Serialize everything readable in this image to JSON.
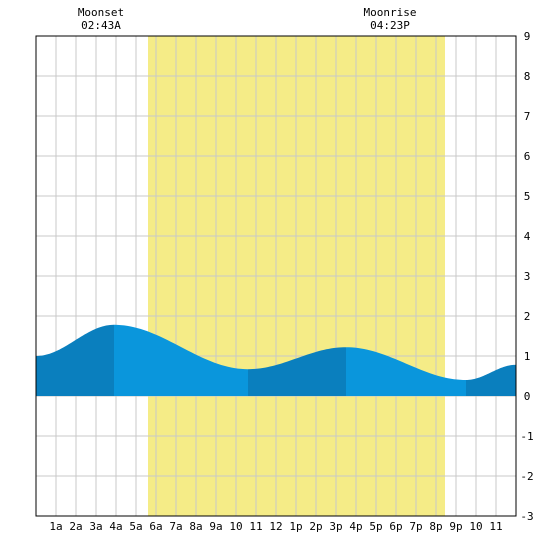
{
  "chart_data": {
    "type": "area",
    "title": "",
    "xlabel": "",
    "ylabel": "",
    "ylim": [
      -3,
      9
    ],
    "yticks": [
      "-3",
      "-2",
      "-1",
      "0",
      "1",
      "2",
      "3",
      "4",
      "5",
      "6",
      "7",
      "8",
      "9"
    ],
    "xlim": [
      0,
      24
    ],
    "xticks": [
      {
        "hour": 1,
        "label": "1a"
      },
      {
        "hour": 2,
        "label": "2a"
      },
      {
        "hour": 3,
        "label": "3a"
      },
      {
        "hour": 4,
        "label": "4a"
      },
      {
        "hour": 5,
        "label": "5a"
      },
      {
        "hour": 6,
        "label": "6a"
      },
      {
        "hour": 7,
        "label": "7a"
      },
      {
        "hour": 8,
        "label": "8a"
      },
      {
        "hour": 9,
        "label": "9a"
      },
      {
        "hour": 10,
        "label": "10"
      },
      {
        "hour": 11,
        "label": "11"
      },
      {
        "hour": 12,
        "label": "12"
      },
      {
        "hour": 13,
        "label": "1p"
      },
      {
        "hour": 14,
        "label": "2p"
      },
      {
        "hour": 15,
        "label": "3p"
      },
      {
        "hour": 16,
        "label": "4p"
      },
      {
        "hour": 17,
        "label": "5p"
      },
      {
        "hour": 18,
        "label": "6p"
      },
      {
        "hour": 19,
        "label": "7p"
      },
      {
        "hour": 20,
        "label": "8p"
      },
      {
        "hour": 21,
        "label": "9p"
      },
      {
        "hour": 22,
        "label": "10"
      },
      {
        "hour": 23,
        "label": "11"
      }
    ],
    "grid": true,
    "daylight": {
      "start_hour": 5.6,
      "end_hour": 20.45
    },
    "series": [
      {
        "x": [
          0,
          3.9,
          10.6,
          15.5,
          21.5,
          24
        ],
        "y": [
          1.0,
          1.78,
          0.67,
          1.22,
          0.4,
          0.78
        ]
      }
    ],
    "annotations": [
      {
        "hour": 3.0,
        "label": "Moonset",
        "time": "02:43A"
      },
      {
        "hour": 17.45,
        "label": "Moonrise",
        "time": "04:23P"
      }
    ],
    "colors": {
      "daylight": "#f5ec87",
      "tide_light": "#0a96dc",
      "tide_dark": "#0a7fbe",
      "grid": "#c8c8c8",
      "border": "#000000"
    }
  }
}
